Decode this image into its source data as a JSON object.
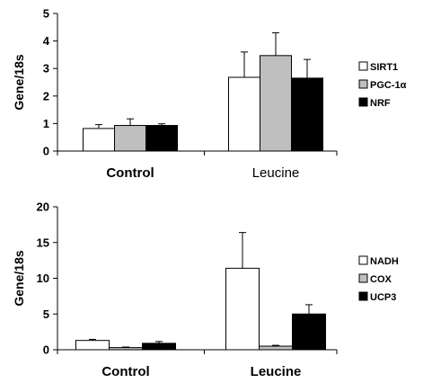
{
  "chart_data": [
    {
      "type": "bar",
      "ylabel": "Gene/18s",
      "ylim": [
        0,
        5
      ],
      "yticks": [
        0,
        1,
        2,
        3,
        4,
        5
      ],
      "categories": [
        "Control",
        "Leucine"
      ],
      "category_bold": [
        true,
        false
      ],
      "series": [
        {
          "name": "SIRT1",
          "values": [
            0.82,
            2.68
          ],
          "errors": [
            0.14,
            0.92
          ],
          "color": "#ffffff"
        },
        {
          "name": "PGC-1α",
          "values": [
            0.93,
            3.47
          ],
          "errors": [
            0.24,
            0.83
          ],
          "color": "#bfbfbf"
        },
        {
          "name": "NRF",
          "values": [
            0.93,
            2.65
          ],
          "errors": [
            0.06,
            0.68
          ],
          "color": "#000000"
        }
      ],
      "legend_position": "right"
    },
    {
      "type": "bar",
      "ylabel": "Gene/18s",
      "ylim": [
        0,
        20
      ],
      "yticks": [
        0,
        5,
        10,
        15,
        20
      ],
      "categories": [
        "Control",
        "Leucine"
      ],
      "category_bold": [
        true,
        true
      ],
      "series": [
        {
          "name": "NADH",
          "values": [
            1.3,
            11.4
          ],
          "errors": [
            0.15,
            5.0
          ],
          "color": "#ffffff"
        },
        {
          "name": "COX",
          "values": [
            0.3,
            0.5
          ],
          "errors": [
            0.08,
            0.12
          ],
          "color": "#bfbfbf"
        },
        {
          "name": "UCP3",
          "values": [
            0.9,
            5.0
          ],
          "errors": [
            0.25,
            1.3
          ],
          "color": "#000000"
        }
      ],
      "legend_position": "right"
    }
  ]
}
